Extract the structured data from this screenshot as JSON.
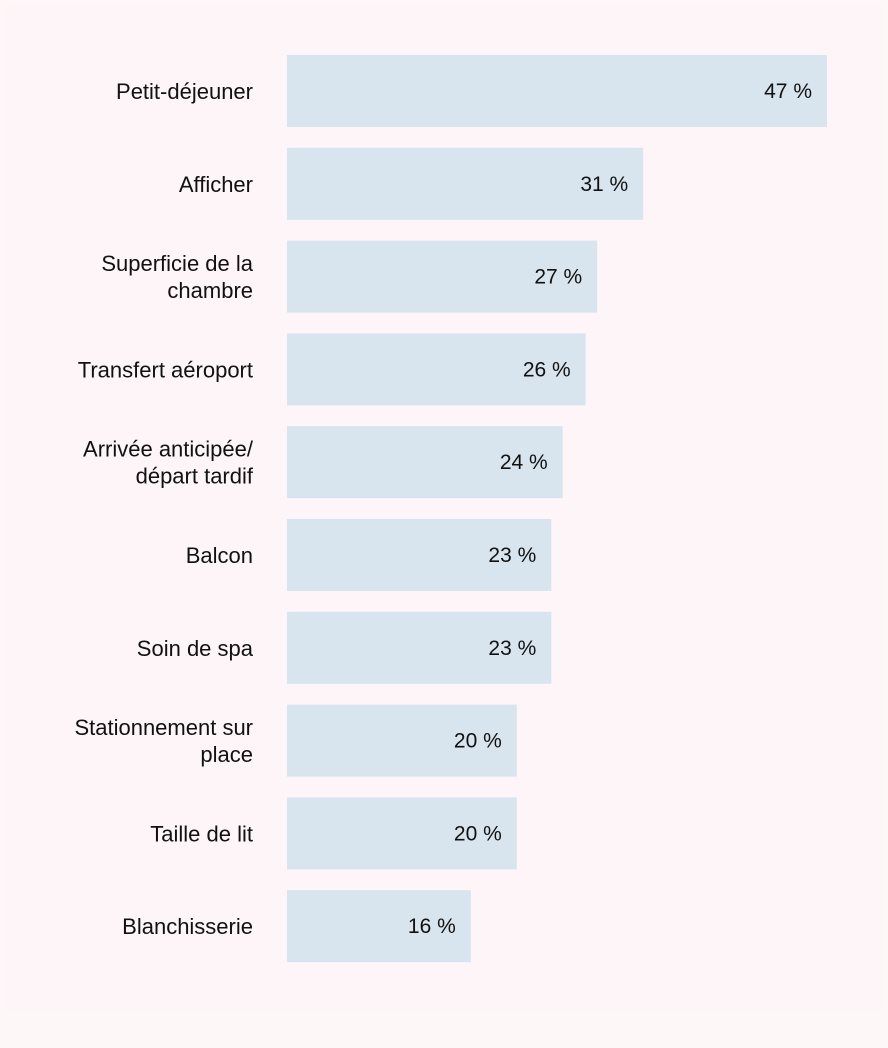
{
  "chart_data": {
    "type": "bar",
    "orientation": "horizontal",
    "title": "",
    "xlabel": "",
    "ylabel": "",
    "xlim": [
      0,
      47
    ],
    "grid": false,
    "categories": [
      [
        "Petit-déjeuner"
      ],
      [
        "Afficher"
      ],
      [
        "Superficie de la",
        "chambre"
      ],
      [
        "Transfert aéroport"
      ],
      [
        "Arrivée anticipée/",
        "départ tardif"
      ],
      [
        "Balcon"
      ],
      [
        "Soin de spa"
      ],
      [
        "Stationnement sur",
        "place"
      ],
      [
        "Taille de lit"
      ],
      [
        "Blanchisserie"
      ]
    ],
    "values": [
      47,
      31,
      27,
      26,
      24,
      23,
      23,
      20,
      20,
      16
    ],
    "value_labels": [
      "47 %",
      "31 %",
      "27 %",
      "26 %",
      "24 %",
      "23 %",
      "23 %",
      "20 %",
      "20 %",
      "16 %"
    ],
    "bar_color": "#d8e5ee",
    "background_color": "#fdf5f7"
  }
}
